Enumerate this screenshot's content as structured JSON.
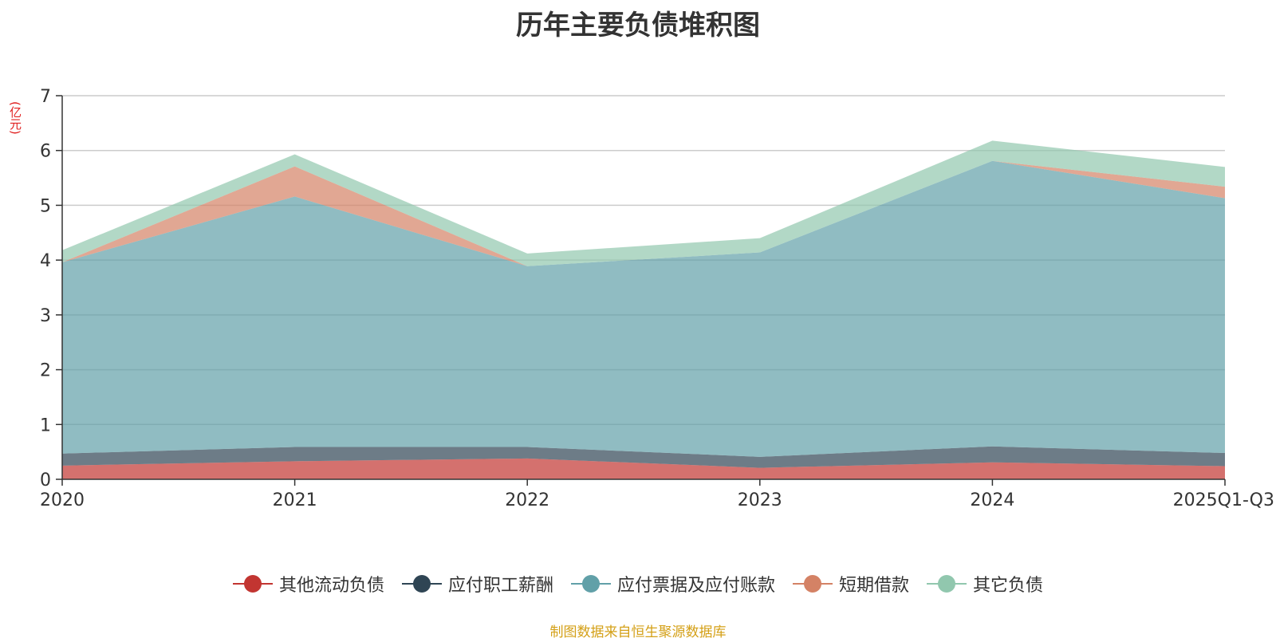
{
  "chart_data": {
    "type": "area",
    "stacked": true,
    "title": "历年主要负债堆积图",
    "unit": "(亿元)",
    "categories": [
      "2020",
      "2021",
      "2022",
      "2023",
      "2024",
      "2025Q1-Q3"
    ],
    "ylim": [
      0,
      7
    ],
    "yticks": [
      0,
      1,
      2,
      3,
      4,
      5,
      6,
      7
    ],
    "grid": true,
    "legend_position": "bottom",
    "series": [
      {
        "name": "其他流动负债",
        "color": "#c23531",
        "values": [
          0.25,
          0.33,
          0.38,
          0.21,
          0.31,
          0.24
        ]
      },
      {
        "name": "应付职工薪酬",
        "color": "#2f4554",
        "values": [
          0.22,
          0.26,
          0.21,
          0.2,
          0.29,
          0.24
        ]
      },
      {
        "name": "应付票据及应付账款",
        "color": "#61a0a8",
        "values": [
          3.49,
          4.57,
          3.3,
          3.73,
          5.21,
          4.65
        ]
      },
      {
        "name": "短期借款",
        "color": "#d48265",
        "values": [
          0.0,
          0.55,
          0.0,
          0.0,
          0.0,
          0.21
        ]
      },
      {
        "name": "其它负债",
        "color": "#91c7ae",
        "values": [
          0.22,
          0.22,
          0.23,
          0.26,
          0.37,
          0.36
        ]
      }
    ]
  },
  "source_note": "制图数据来自恒生聚源数据库"
}
